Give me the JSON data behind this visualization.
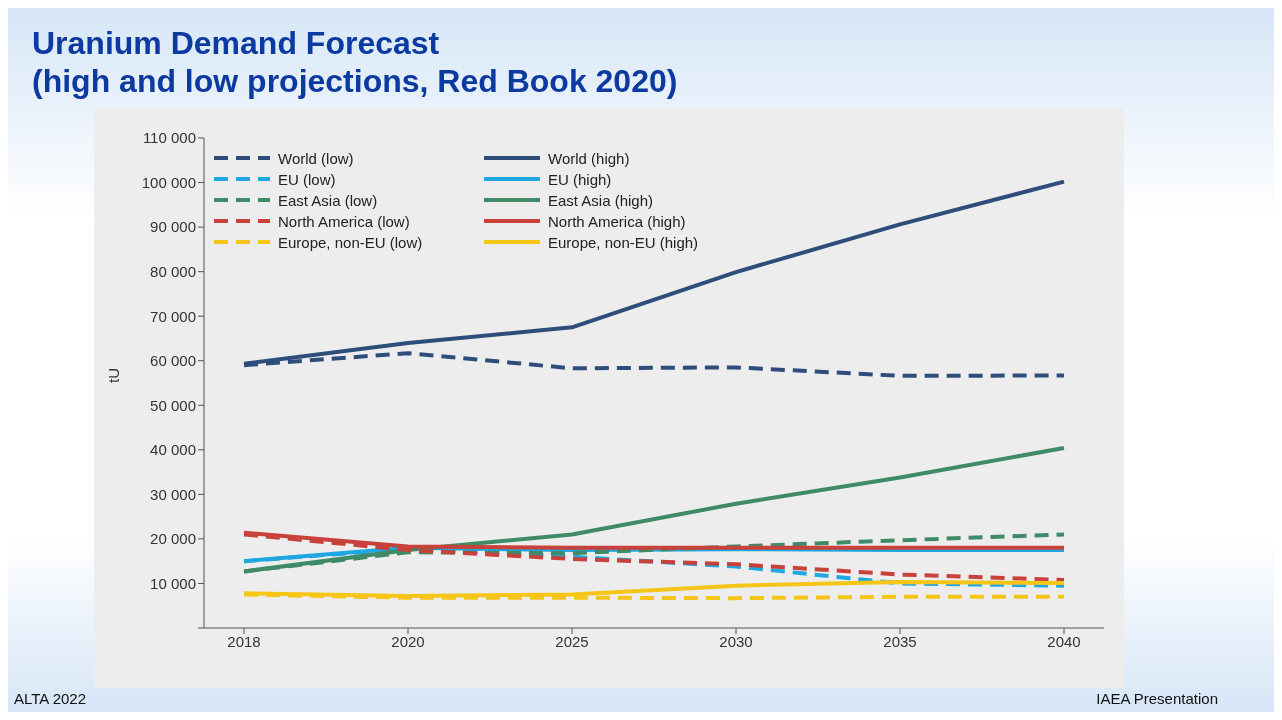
{
  "chart_data": {
    "type": "line",
    "title": "Uranium Demand Forecast\n(high and low projections, Red Book 2020)",
    "ylabel": "tU",
    "categories": [
      "2018",
      "2020",
      "2025",
      "2030",
      "2035",
      "2040"
    ],
    "series": [
      {
        "name": "World (low)",
        "color": "#2e4d7b",
        "line_style": "dashed",
        "values": [
          59000,
          61700,
          58300,
          58500,
          56600,
          56700
        ]
      },
      {
        "name": "World (high)",
        "color": "#2e4d7b",
        "line_style": "solid",
        "values": [
          59300,
          64000,
          67500,
          79900,
          90600,
          100200
        ]
      },
      {
        "name": "EU (low)",
        "color": "#1ea7e1",
        "line_style": "dashed",
        "values": [
          15000,
          17800,
          16000,
          13800,
          10000,
          9500
        ]
      },
      {
        "name": "EU (high)",
        "color": "#1ea7e1",
        "line_style": "solid",
        "values": [
          15000,
          18000,
          17500,
          17700,
          17500,
          17500
        ]
      },
      {
        "name": "East Asia (low)",
        "color": "#3f8a67",
        "line_style": "dashed",
        "values": [
          12700,
          17000,
          16800,
          18300,
          19700,
          21000
        ]
      },
      {
        "name": "East Asia (high)",
        "color": "#3f8a67",
        "line_style": "solid",
        "values": [
          12700,
          17500,
          21000,
          27900,
          33800,
          40400
        ]
      },
      {
        "name": "North America (low)",
        "color": "#c8413b",
        "line_style": "dashed",
        "values": [
          21000,
          17500,
          15500,
          14300,
          12000,
          10800
        ]
      },
      {
        "name": "North America (high)",
        "color": "#c8413b",
        "line_style": "solid",
        "values": [
          21400,
          18300,
          18000,
          18000,
          18000,
          18000
        ]
      },
      {
        "name": "Europe, non-EU (low)",
        "color": "#f5c518",
        "line_style": "dashed",
        "values": [
          7500,
          6800,
          6800,
          6700,
          7000,
          7000
        ]
      },
      {
        "name": "Europe, non-EU (high)",
        "color": "#f5c518",
        "line_style": "solid",
        "values": [
          7800,
          7200,
          7500,
          9500,
          10300,
          10100
        ]
      }
    ],
    "ylim": [
      0,
      110000
    ],
    "yticks": [
      {
        "value": 0,
        "label": null
      },
      {
        "value": 10000,
        "label": "10 000"
      },
      {
        "value": 20000,
        "label": "20 000"
      },
      {
        "value": 30000,
        "label": "30 000"
      },
      {
        "value": 40000,
        "label": "40 000"
      },
      {
        "value": 50000,
        "label": "50 000"
      },
      {
        "value": 60000,
        "label": "60 000"
      },
      {
        "value": 70000,
        "label": "70 000"
      },
      {
        "value": 80000,
        "label": "80 000"
      },
      {
        "value": 90000,
        "label": "90 000"
      },
      {
        "value": 100000,
        "label": "100 000"
      },
      {
        "value": 110000,
        "label": "110 000"
      }
    ],
    "grid": false,
    "legend": "top left",
    "marker": "none",
    "annotations": [
      "ALTA 2022",
      "IAEA Presentation"
    ]
  }
}
